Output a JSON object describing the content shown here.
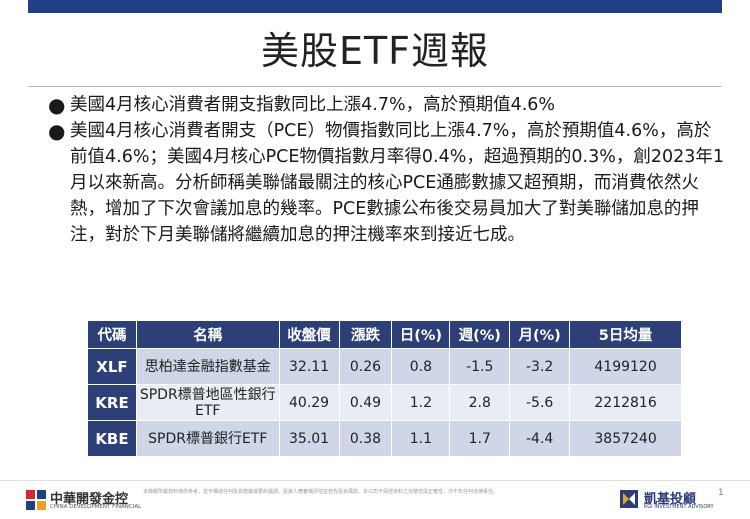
{
  "title": "美股ETF週報",
  "bullets": [
    "美國4月核心消費者開支指數同比上漲4.7%，高於預期值4.6%",
    "美國4月核心消費者開支（PCE）物價指數同比上漲4.7%，高於預期值4.6%，高於前值4.6%；美國4月核心PCE物價指數月率得0.4%，超過預期的0.3%，創2023年1月以來新高。分析師稱美聯儲最關注的核心PCE通膨數據又超預期，而消費依然火熱，增加了下次會議加息的幾率。PCE數據公布後交易員加大了對美聯儲加息的押注，對於下月美聯儲將繼續加息的押注機率來到接近七成。"
  ],
  "table": {
    "headers": [
      "代碼",
      "名稱",
      "收盤價",
      "漲跌",
      "日(%)",
      "週(%)",
      "月(%)",
      "5日均量"
    ],
    "rows": [
      [
        "XLF",
        "思柏達金融指數基金",
        "32.11",
        "0.26",
        "0.8",
        "-1.5",
        "-3.2",
        "4199120"
      ],
      [
        "KRE",
        "SPDR標普地區性銀行ETF",
        "40.29",
        "0.49",
        "1.2",
        "2.8",
        "-5.6",
        "2212816"
      ],
      [
        "KBE",
        "SPDR標普銀行ETF",
        "35.01",
        "0.38",
        "1.1",
        "1.7",
        "-4.4",
        "3857240"
      ]
    ]
  },
  "footer": {
    "left_logo_name": "中華開發金控",
    "left_logo_en": "CHINA DEVELOPMENT FINANCIAL",
    "right_logo_name": "凱基投顧",
    "right_logo_en": "KGI INVESTMENT ADVISORY",
    "disclaimer": "本簡報所載資料僅供參考，並不構成任何投資建議或要約邀請。投資人應審慎評估並自負投資風險。本公司不保證資料之完整性與正確性，亦不負任何法律責任。",
    "page_number": "1"
  },
  "colors": {
    "header_bg": "#2d3f78",
    "topbar": "#1f3f86",
    "row_dark": "#cfd6e8",
    "row_light": "#e8ecf4"
  }
}
